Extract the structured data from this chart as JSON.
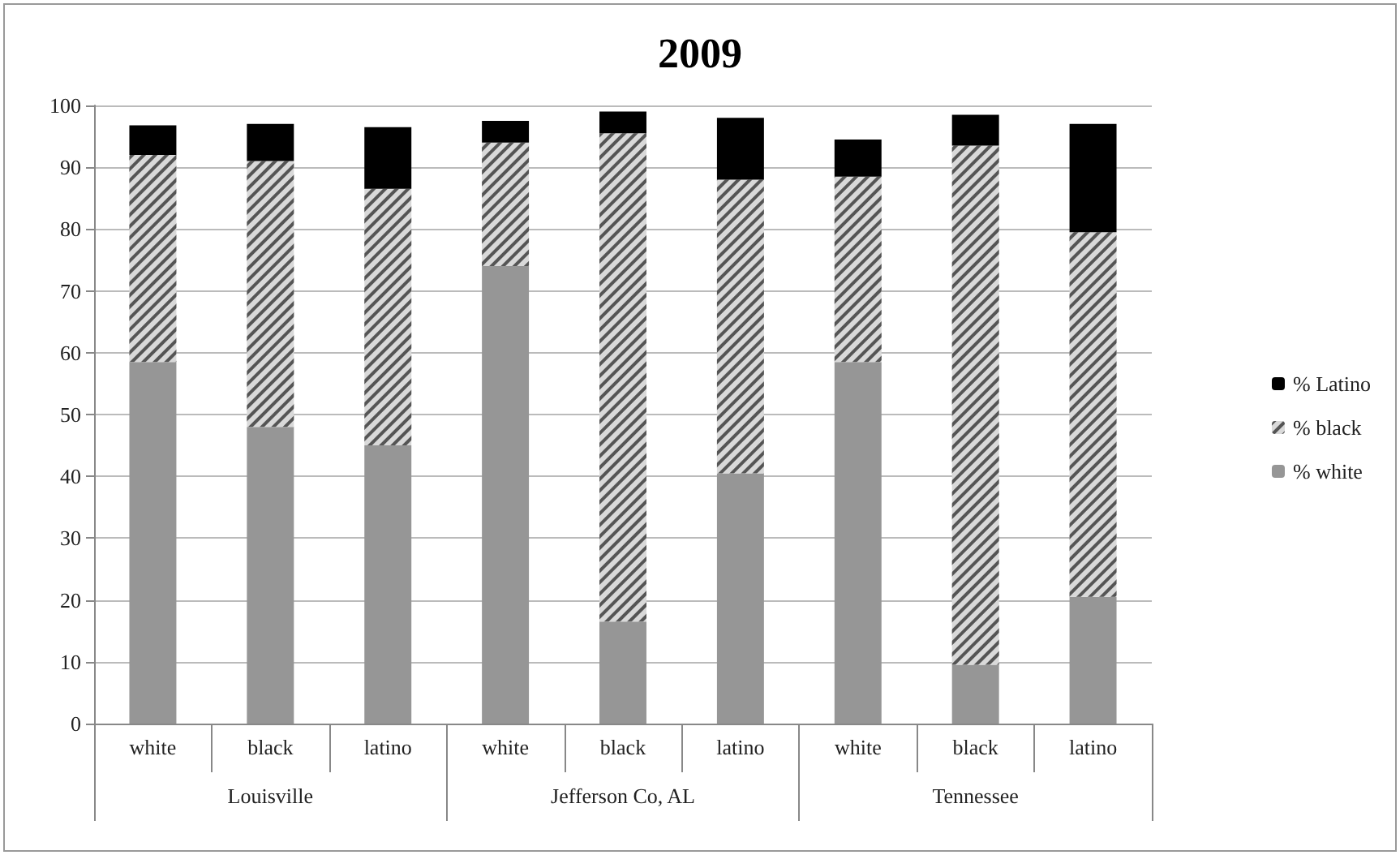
{
  "chart_data": {
    "type": "bar",
    "title": "2009",
    "stacked": true,
    "categories": [
      "white",
      "black",
      "latino",
      "white",
      "black",
      "latino",
      "white",
      "black",
      "latino"
    ],
    "annotations": [
      "Louisville",
      "Jefferson Co, AL",
      "Tennessee"
    ],
    "series": [
      {
        "name": "% white",
        "color": "#969696",
        "values": [
          58.5,
          48,
          45,
          74,
          16.5,
          40.5,
          58.5,
          9.5,
          20.5
        ]
      },
      {
        "name": "% black",
        "color": "#d9d9d9",
        "values": [
          33.5,
          43,
          41.5,
          20,
          79,
          47.5,
          30,
          84,
          59
        ]
      },
      {
        "name": "% Latino",
        "color": "#000000",
        "values": [
          4.8,
          6,
          10,
          3.5,
          3.5,
          10,
          6,
          5,
          17.5
        ]
      }
    ],
    "ylim": [
      0,
      100
    ],
    "yticks": [
      0,
      10,
      20,
      30,
      40,
      50,
      60,
      70,
      80,
      90,
      100
    ],
    "grid": "y",
    "legend": "right"
  }
}
